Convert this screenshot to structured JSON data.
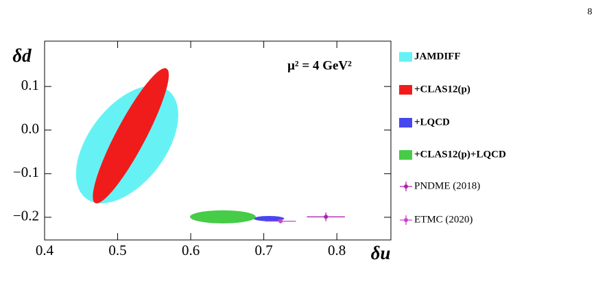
{
  "page_number": "8",
  "chart_data": {
    "type": "scatter",
    "xlabel": "δu",
    "ylabel": "δd",
    "annotation": "μ² = 4 GeV²",
    "xlim": [
      0.4,
      0.874
    ],
    "ylim": [
      -0.252,
      0.204
    ],
    "xticks": [
      0.4,
      0.5,
      0.6,
      0.7,
      0.8
    ],
    "yticks": [
      {
        "value": 0.1,
        "label": "0.1"
      },
      {
        "value": 0,
        "label": "0.0"
      },
      {
        "value": -0.1,
        "label": "−0.1"
      },
      {
        "value": -0.2,
        "label": "−0.2"
      }
    ],
    "series": [
      {
        "name": "JAMDIFF",
        "color": "#66f2f5",
        "x": 0.513,
        "y": -0.033,
        "sx": 0.07,
        "sy": 0.135,
        "rho": 0.5
      },
      {
        "name": "+CLAS12(p)",
        "color": "#f01c1c",
        "x": 0.518,
        "y": -0.013,
        "sx": 0.052,
        "sy": 0.155,
        "rho": 0.9
      },
      {
        "name": "+LQCD",
        "color": "#4646f0",
        "x": 0.707,
        "y": -0.203,
        "sx": 0.021,
        "sy": 0.006,
        "rho": 0
      },
      {
        "name": "+CLAS12(p)+LQCD",
        "color": "#46cc46",
        "x": 0.644,
        "y": -0.199,
        "sx": 0.045,
        "sy": 0.015,
        "rho": 0
      },
      {
        "name": "PNDME (2018)",
        "color": "#b020b0",
        "x": 0.785,
        "y": -0.199,
        "xerr": 0.026,
        "yerr": 0.01
      },
      {
        "name": "ETMC (2020)",
        "color": "#d040d0",
        "x": 0.723,
        "y": -0.209,
        "xerr": 0.021,
        "yerr": 0.005
      }
    ]
  }
}
